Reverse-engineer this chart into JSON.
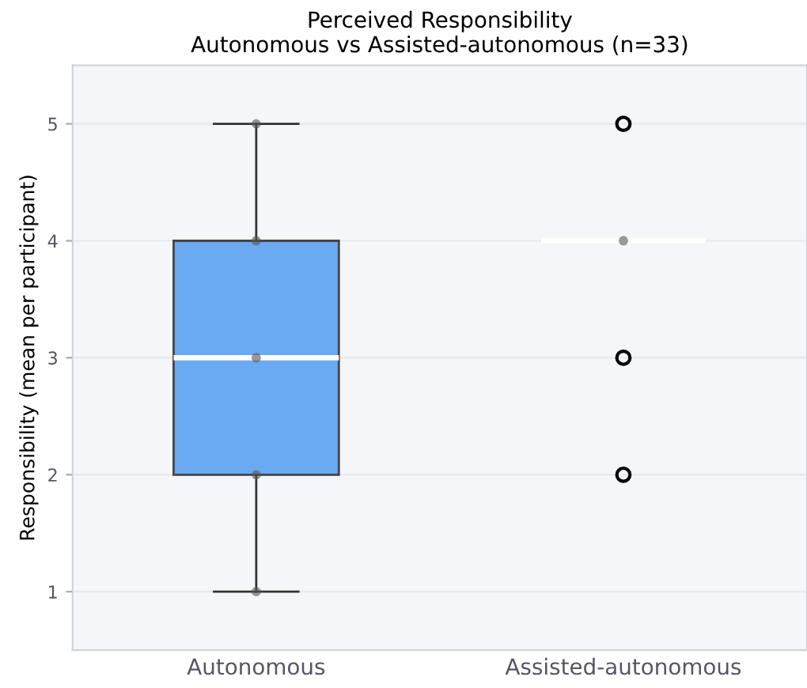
{
  "chart_data": {
    "type": "box",
    "title": "Perceived Responsibility\nAutonomous vs Assisted-autonomous (n=33)",
    "ylabel": "Responsibility (mean per participant)",
    "categories": [
      "Autonomous",
      "Assisted-autonomous"
    ],
    "boxes": [
      {
        "low": 1,
        "q1": 2,
        "median": 3,
        "q3": 4,
        "high": 5
      },
      {
        "low": 4,
        "q1": 4,
        "median": 4,
        "q3": 4,
        "high": 4,
        "outliers": [
          5,
          3,
          2
        ]
      }
    ],
    "color": "#6aaaf2",
    "series": [
      {
        "type": "scatter",
        "color": "#555555",
        "x": [
          "Autonomous",
          "Autonomous",
          "Autonomous",
          "Autonomous",
          "Autonomous",
          "Assisted-autonomous"
        ],
        "values": [
          1,
          2,
          3,
          4,
          5,
          4
        ]
      }
    ],
    "ylim": [
      0.5,
      5.5
    ],
    "yticks": [
      1,
      2,
      3,
      4,
      5
    ],
    "grid": "y"
  }
}
